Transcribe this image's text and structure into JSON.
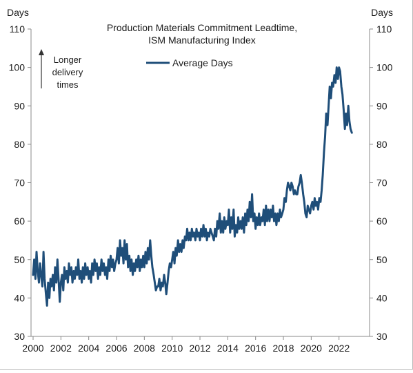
{
  "chart_data": {
    "type": "line",
    "title": "Production Materials Commitment Leadtime,",
    "subtitle": "ISM Manufacturing  Index",
    "y_unit_left": "Days",
    "y_unit_right": "Days",
    "ylim": [
      30,
      110
    ],
    "yticks": [
      30,
      40,
      50,
      60,
      70,
      80,
      90,
      100,
      110
    ],
    "xlim": [
      2000,
      2023.8
    ],
    "xticks": [
      "2000",
      "2002",
      "2004",
      "2006",
      "2008",
      "2010",
      "2012",
      "2014",
      "2016",
      "2018",
      "2020",
      "2022"
    ],
    "annotation": [
      "Longer",
      "delivery",
      "times"
    ],
    "legend_position": "top-center",
    "grid": false,
    "series": [
      {
        "name": "Average Days",
        "color": "#1f4e79",
        "points": [
          [
            2000.0,
            46
          ],
          [
            2000.08,
            50
          ],
          [
            2000.17,
            45
          ],
          [
            2000.25,
            52
          ],
          [
            2000.33,
            47
          ],
          [
            2000.42,
            44
          ],
          [
            2000.5,
            49
          ],
          [
            2000.58,
            46
          ],
          [
            2000.67,
            43
          ],
          [
            2000.75,
            52
          ],
          [
            2000.83,
            45
          ],
          [
            2000.92,
            41
          ],
          [
            2001.0,
            38
          ],
          [
            2001.08,
            44
          ],
          [
            2001.17,
            40
          ],
          [
            2001.25,
            45
          ],
          [
            2001.33,
            43
          ],
          [
            2001.42,
            46
          ],
          [
            2001.5,
            42
          ],
          [
            2001.58,
            48
          ],
          [
            2001.67,
            44
          ],
          [
            2001.75,
            50
          ],
          [
            2001.83,
            45
          ],
          [
            2001.92,
            39
          ],
          [
            2002.0,
            44
          ],
          [
            2002.08,
            46
          ],
          [
            2002.17,
            42
          ],
          [
            2002.25,
            48
          ],
          [
            2002.33,
            45
          ],
          [
            2002.42,
            47
          ],
          [
            2002.5,
            44
          ],
          [
            2002.58,
            49
          ],
          [
            2002.67,
            46
          ],
          [
            2002.75,
            48
          ],
          [
            2002.83,
            44
          ],
          [
            2002.92,
            47
          ],
          [
            2003.0,
            45
          ],
          [
            2003.08,
            48
          ],
          [
            2003.17,
            46
          ],
          [
            2003.25,
            50
          ],
          [
            2003.33,
            45
          ],
          [
            2003.42,
            47
          ],
          [
            2003.5,
            44
          ],
          [
            2003.58,
            48
          ],
          [
            2003.67,
            45
          ],
          [
            2003.75,
            49
          ],
          [
            2003.83,
            46
          ],
          [
            2003.92,
            48
          ],
          [
            2004.0,
            45
          ],
          [
            2004.08,
            47
          ],
          [
            2004.17,
            44
          ],
          [
            2004.25,
            49
          ],
          [
            2004.33,
            46
          ],
          [
            2004.42,
            50
          ],
          [
            2004.5,
            47
          ],
          [
            2004.58,
            49
          ],
          [
            2004.67,
            45
          ],
          [
            2004.75,
            48
          ],
          [
            2004.83,
            46
          ],
          [
            2004.92,
            50
          ],
          [
            2005.0,
            47
          ],
          [
            2005.08,
            49
          ],
          [
            2005.17,
            46
          ],
          [
            2005.25,
            48
          ],
          [
            2005.33,
            45
          ],
          [
            2005.42,
            50
          ],
          [
            2005.5,
            47
          ],
          [
            2005.58,
            51
          ],
          [
            2005.67,
            48
          ],
          [
            2005.75,
            50
          ],
          [
            2005.83,
            47
          ],
          [
            2005.92,
            49
          ],
          [
            2006.0,
            50
          ],
          [
            2006.08,
            53
          ],
          [
            2006.17,
            49
          ],
          [
            2006.25,
            55
          ],
          [
            2006.33,
            51
          ],
          [
            2006.42,
            53
          ],
          [
            2006.5,
            49
          ],
          [
            2006.58,
            55
          ],
          [
            2006.67,
            50
          ],
          [
            2006.75,
            54
          ],
          [
            2006.83,
            48
          ],
          [
            2006.92,
            51
          ],
          [
            2007.0,
            47
          ],
          [
            2007.08,
            50
          ],
          [
            2007.17,
            46
          ],
          [
            2007.25,
            49
          ],
          [
            2007.33,
            47
          ],
          [
            2007.42,
            50
          ],
          [
            2007.5,
            48
          ],
          [
            2007.58,
            51
          ],
          [
            2007.67,
            47
          ],
          [
            2007.75,
            50
          ],
          [
            2007.83,
            48
          ],
          [
            2007.92,
            51
          ],
          [
            2008.0,
            48
          ],
          [
            2008.08,
            52
          ],
          [
            2008.17,
            49
          ],
          [
            2008.25,
            53
          ],
          [
            2008.33,
            50
          ],
          [
            2008.42,
            55
          ],
          [
            2008.5,
            51
          ],
          [
            2008.58,
            48
          ],
          [
            2008.67,
            46
          ],
          [
            2008.75,
            44
          ],
          [
            2008.83,
            42
          ],
          [
            2008.92,
            43
          ],
          [
            2009.0,
            43
          ],
          [
            2009.08,
            45
          ],
          [
            2009.17,
            42
          ],
          [
            2009.25,
            44
          ],
          [
            2009.33,
            43
          ],
          [
            2009.42,
            46
          ],
          [
            2009.5,
            44
          ],
          [
            2009.58,
            41
          ],
          [
            2009.67,
            44
          ],
          [
            2009.75,
            47
          ],
          [
            2009.83,
            49
          ],
          [
            2009.92,
            48
          ],
          [
            2010.0,
            50
          ],
          [
            2010.08,
            52
          ],
          [
            2010.17,
            49
          ],
          [
            2010.25,
            53
          ],
          [
            2010.33,
            51
          ],
          [
            2010.42,
            55
          ],
          [
            2010.5,
            52
          ],
          [
            2010.58,
            54
          ],
          [
            2010.67,
            52
          ],
          [
            2010.75,
            55
          ],
          [
            2010.83,
            53
          ],
          [
            2010.92,
            56
          ],
          [
            2011.0,
            55
          ],
          [
            2011.08,
            58
          ],
          [
            2011.17,
            55
          ],
          [
            2011.25,
            57
          ],
          [
            2011.33,
            55
          ],
          [
            2011.42,
            58
          ],
          [
            2011.5,
            56
          ],
          [
            2011.58,
            57
          ],
          [
            2011.67,
            55
          ],
          [
            2011.75,
            58
          ],
          [
            2011.83,
            56
          ],
          [
            2011.92,
            57
          ],
          [
            2012.0,
            55
          ],
          [
            2012.08,
            58
          ],
          [
            2012.17,
            56
          ],
          [
            2012.25,
            59
          ],
          [
            2012.33,
            56
          ],
          [
            2012.42,
            58
          ],
          [
            2012.5,
            55
          ],
          [
            2012.58,
            57
          ],
          [
            2012.67,
            56
          ],
          [
            2012.75,
            58
          ],
          [
            2012.83,
            57
          ],
          [
            2012.92,
            56
          ],
          [
            2013.0,
            55
          ],
          [
            2013.08,
            58
          ],
          [
            2013.17,
            56
          ],
          [
            2013.25,
            60
          ],
          [
            2013.33,
            58
          ],
          [
            2013.42,
            62
          ],
          [
            2013.5,
            57
          ],
          [
            2013.58,
            60
          ],
          [
            2013.67,
            57
          ],
          [
            2013.75,
            61
          ],
          [
            2013.83,
            58
          ],
          [
            2013.92,
            60
          ],
          [
            2014.0,
            59
          ],
          [
            2014.08,
            63
          ],
          [
            2014.17,
            57
          ],
          [
            2014.25,
            61
          ],
          [
            2014.33,
            58
          ],
          [
            2014.42,
            63
          ],
          [
            2014.5,
            56
          ],
          [
            2014.58,
            59
          ],
          [
            2014.67,
            57
          ],
          [
            2014.75,
            61
          ],
          [
            2014.83,
            58
          ],
          [
            2014.92,
            60
          ],
          [
            2015.0,
            58
          ],
          [
            2015.08,
            61
          ],
          [
            2015.17,
            57
          ],
          [
            2015.25,
            62
          ],
          [
            2015.33,
            59
          ],
          [
            2015.42,
            63
          ],
          [
            2015.5,
            60
          ],
          [
            2015.58,
            65
          ],
          [
            2015.67,
            61
          ],
          [
            2015.75,
            67
          ],
          [
            2015.83,
            60
          ],
          [
            2015.92,
            62
          ],
          [
            2016.0,
            58
          ],
          [
            2016.08,
            61
          ],
          [
            2016.17,
            59
          ],
          [
            2016.25,
            62
          ],
          [
            2016.33,
            59
          ],
          [
            2016.42,
            61
          ],
          [
            2016.5,
            60
          ],
          [
            2016.58,
            63
          ],
          [
            2016.67,
            59
          ],
          [
            2016.75,
            64
          ],
          [
            2016.83,
            60
          ],
          [
            2016.92,
            63
          ],
          [
            2017.0,
            60
          ],
          [
            2017.08,
            63
          ],
          [
            2017.17,
            61
          ],
          [
            2017.25,
            64
          ],
          [
            2017.33,
            60
          ],
          [
            2017.42,
            62
          ],
          [
            2017.5,
            59
          ],
          [
            2017.58,
            62
          ],
          [
            2017.67,
            60
          ],
          [
            2017.75,
            63
          ],
          [
            2017.83,
            61
          ],
          [
            2017.92,
            62
          ],
          [
            2018.0,
            63
          ],
          [
            2018.08,
            66
          ],
          [
            2018.17,
            65
          ],
          [
            2018.25,
            68
          ],
          [
            2018.33,
            70
          ],
          [
            2018.42,
            69
          ],
          [
            2018.5,
            68
          ],
          [
            2018.58,
            70
          ],
          [
            2018.67,
            69
          ],
          [
            2018.75,
            67
          ],
          [
            2018.83,
            68
          ],
          [
            2018.92,
            67
          ],
          [
            2019.0,
            67
          ],
          [
            2019.08,
            69
          ],
          [
            2019.17,
            70
          ],
          [
            2019.25,
            72
          ],
          [
            2019.33,
            70
          ],
          [
            2019.42,
            67
          ],
          [
            2019.5,
            65
          ],
          [
            2019.58,
            62
          ],
          [
            2019.67,
            61
          ],
          [
            2019.75,
            64
          ],
          [
            2019.83,
            63
          ],
          [
            2019.92,
            62
          ],
          [
            2020.0,
            64
          ],
          [
            2020.08,
            65
          ],
          [
            2020.17,
            63
          ],
          [
            2020.25,
            66
          ],
          [
            2020.33,
            64
          ],
          [
            2020.42,
            65
          ],
          [
            2020.5,
            63
          ],
          [
            2020.58,
            66
          ],
          [
            2020.67,
            65
          ],
          [
            2020.75,
            68
          ],
          [
            2020.83,
            72
          ],
          [
            2020.92,
            78
          ],
          [
            2021.0,
            82
          ],
          [
            2021.08,
            88
          ],
          [
            2021.17,
            85
          ],
          [
            2021.25,
            90
          ],
          [
            2021.33,
            95
          ],
          [
            2021.42,
            92
          ],
          [
            2021.5,
            96
          ],
          [
            2021.58,
            95
          ],
          [
            2021.67,
            98
          ],
          [
            2021.75,
            96
          ],
          [
            2021.83,
            100
          ],
          [
            2021.92,
            97
          ],
          [
            2022.0,
            100
          ],
          [
            2022.08,
            99
          ],
          [
            2022.17,
            95
          ],
          [
            2022.25,
            93
          ],
          [
            2022.33,
            89
          ],
          [
            2022.42,
            84
          ],
          [
            2022.5,
            88
          ],
          [
            2022.58,
            85
          ],
          [
            2022.67,
            90
          ],
          [
            2022.75,
            86
          ],
          [
            2022.83,
            84
          ],
          [
            2022.92,
            83
          ]
        ]
      }
    ]
  }
}
